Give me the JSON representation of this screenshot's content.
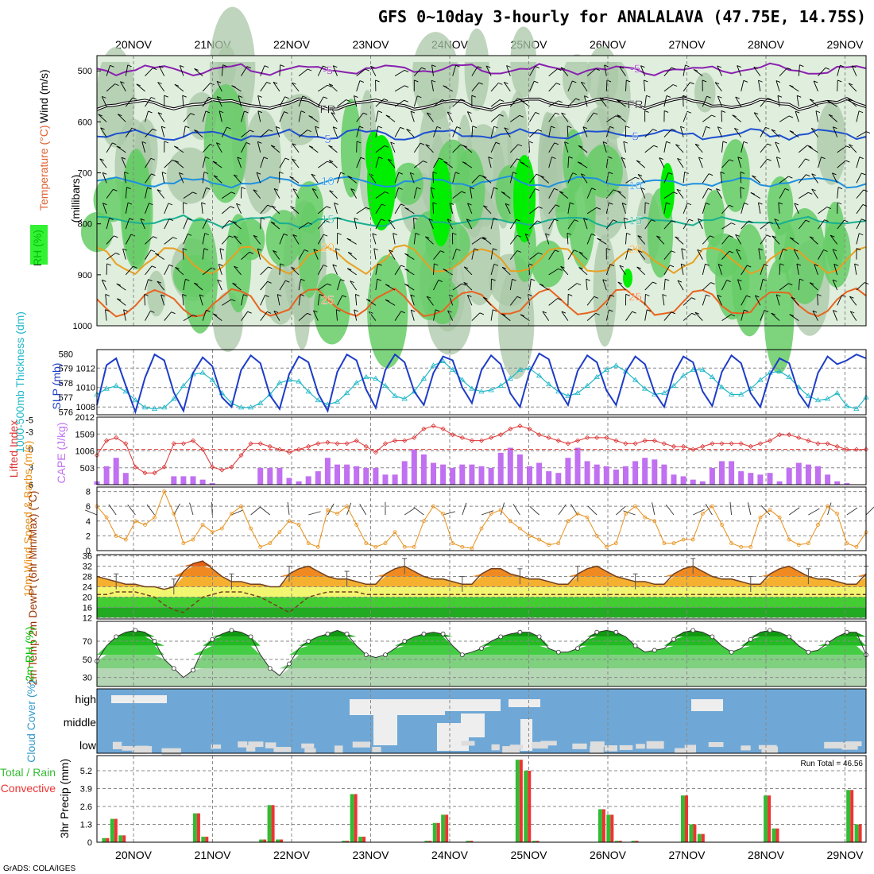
{
  "title": "GFS 0~10day 3-hourly for ANALALAVA (47.75E, 14.75S)",
  "footer": "GrADS: COLA/IGES",
  "colors": {
    "rh_fill_light": "#dfeedd",
    "rh_fill_mid": "#a9c7a7",
    "rh_fill_green": "#66cc66",
    "rh_fill_bright": "#00ee00",
    "slp": "#1e3cc8",
    "thickness": "#20b8c8",
    "lifted_index": "#dd3333",
    "cape": "#c070f0",
    "wind10m": "#e8901a",
    "temp": "#ee6600",
    "rh2m": "#00c000",
    "cloud": "#6fa8d6",
    "precip_total": "#33bb33",
    "precip_conv": "#ee3333"
  },
  "chart_data": [
    {
      "panel": "upper-air",
      "type": "heatmap",
      "title": "",
      "ylabel": "(millibars)",
      "side_labels": [
        "RH (%)",
        "Temperature (°C)",
        "Wind (m/s)"
      ],
      "dates": [
        "20NOV",
        "21NOV",
        "22NOV",
        "23NOV",
        "24NOV",
        "25NOV",
        "26NOV",
        "27NOV",
        "28NOV",
        "29NOV"
      ],
      "yticks": [
        500,
        600,
        700,
        800,
        900,
        1000
      ],
      "ylim": [
        470,
        1000
      ],
      "temperature_contours": [
        {
          "label": "-5",
          "level_mb": 497,
          "color": "#8a1fb0"
        },
        {
          "label": "FR",
          "level_mb": 565,
          "color": "#000000"
        },
        {
          "label": "5",
          "level_mb": 625,
          "color": "#1e50d0"
        },
        {
          "label": "10",
          "level_mb": 718,
          "color": "#1e90e0"
        },
        {
          "label": "15",
          "level_mb": 795,
          "color": "#18b090"
        },
        {
          "label": "20",
          "level_mb": 870,
          "color": "#e8a020"
        },
        {
          "label": "25",
          "level_mb": 955,
          "color": "#e86420"
        }
      ]
    },
    {
      "panel": "slp-thickness",
      "type": "line",
      "ylabel_left": "1000-500mb Thickness (dm)",
      "ylabel_right": "SLP (mb)",
      "yticks_left": [
        576,
        577,
        578,
        579,
        580
      ],
      "yticks_right": [
        1008,
        1010,
        1012
      ],
      "series": [
        {
          "name": "SLP (mb)",
          "values": [
            1008.2,
            1012.3,
            1013.0,
            1010.2,
            1007.5,
            1011.0,
            1013.4,
            1012.8,
            1009.5,
            1007.6,
            1011.5,
            1013.1,
            1012.2,
            1009.0,
            1008.0,
            1011.8,
            1013.3,
            1012.5,
            1009.2,
            1007.8,
            1011.4,
            1013.2,
            1012.6,
            1009.4,
            1007.6,
            1011.6,
            1013.4,
            1012.8,
            1009.8,
            1007.9,
            1011.8,
            1013.4,
            1012.6,
            1009.6,
            1008.2,
            1011.5,
            1013.2,
            1012.8,
            1010.0,
            1008.4,
            1011.8,
            1013.3,
            1012.4,
            1009.4,
            1008.0,
            1011.6,
            1013.5,
            1012.9,
            1009.8,
            1008.2,
            1011.7,
            1013.3,
            1012.6,
            1009.7,
            1008.2,
            1011.6,
            1013.2,
            1012.4,
            1009.5,
            1008.0,
            1011.4,
            1013.2,
            1012.6,
            1009.6,
            1008.1,
            1011.6,
            1013.3,
            1012.5,
            1009.4,
            1008.0,
            1011.3,
            1013.0,
            1012.5,
            1009.4,
            1008.0,
            1011.5,
            1013.2,
            1012.4,
            1012.8,
            1013.4,
            1013.0
          ]
        },
        {
          "name": "1000-500mb Thickness (dm)",
          "values": [
            577.2,
            577.6,
            577.8,
            577.4,
            576.8,
            576.3,
            576.2,
            576.3,
            576.9,
            577.8,
            578.6,
            578.7,
            578.2,
            577.3,
            576.6,
            576.3,
            576.3,
            576.6,
            577.2,
            578.0,
            578.2,
            578.1,
            577.4,
            576.8,
            576.5,
            576.7,
            577.3,
            578.0,
            578.4,
            578.3,
            577.8,
            577.1,
            576.9,
            577.4,
            578.3,
            579.2,
            579.5,
            578.9,
            578.2,
            577.6,
            577.4,
            577.5,
            577.8,
            578.3,
            578.9,
            579.0,
            578.5,
            577.9,
            577.4,
            577.1,
            577.3,
            577.8,
            578.4,
            578.9,
            579.2,
            578.8,
            578.2,
            577.6,
            577.2,
            577.3,
            577.8,
            578.5,
            578.9,
            578.9,
            578.4,
            577.7,
            577.2,
            577.2,
            577.6,
            578.2,
            578.7,
            578.8,
            578.4,
            577.7,
            577.1,
            576.8,
            576.9,
            577.3,
            576.4,
            576.2,
            577.0
          ]
        }
      ]
    },
    {
      "panel": "li-cape",
      "type": "bar",
      "ylabel_left": "Lifted Index",
      "ylabel_right": "CAPE (J/kg)",
      "yticks_left": [
        -5,
        -3,
        0,
        3,
        6
      ],
      "yticks_right": [
        503,
        1006,
        1509,
        2012
      ],
      "series": [
        {
          "name": "CAPE (J/kg)",
          "values": [
            100,
            550,
            800,
            350,
            20,
            0,
            0,
            0,
            250,
            250,
            250,
            150,
            50,
            0,
            0,
            0,
            0,
            500,
            500,
            500,
            200,
            100,
            250,
            400,
            800,
            600,
            600,
            550,
            500,
            500,
            300,
            300,
            700,
            1050,
            900,
            650,
            600,
            500,
            600,
            600,
            550,
            500,
            950,
            1100,
            900,
            550,
            650,
            400,
            350,
            800,
            1100,
            700,
            600,
            550,
            450,
            550,
            700,
            800,
            750,
            600,
            300,
            250,
            150,
            100,
            500,
            700,
            700,
            400,
            350,
            300,
            350,
            100,
            500,
            650,
            600,
            550,
            300,
            100,
            50,
            0,
            0
          ]
        },
        {
          "name": "Lifted Index",
          "values": [
            1.0,
            -1.5,
            -2.0,
            -1.0,
            3.0,
            4.0,
            4.0,
            3.0,
            -1.0,
            -1.0,
            -1.5,
            0.0,
            3.0,
            3.5,
            3.0,
            1.0,
            -1.0,
            -1.0,
            -0.5,
            0.0,
            0.5,
            0.0,
            -0.5,
            -1.0,
            -1.2,
            -1.0,
            -1.0,
            -1.5,
            -0.5,
            0.5,
            -1.0,
            -1.5,
            -1.5,
            -2.0,
            -3.5,
            -4.0,
            -3.5,
            -2.5,
            -2.0,
            -1.5,
            -1.5,
            -2.0,
            -2.5,
            -3.5,
            -4.0,
            -3.5,
            -2.5,
            -2.0,
            -1.5,
            -1.0,
            -1.5,
            -2.0,
            -2.0,
            -2.0,
            -1.5,
            -1.0,
            -1.0,
            -1.5,
            -1.5,
            -1.0,
            -0.5,
            -0.5,
            0.0,
            -0.5,
            -1.0,
            -1.0,
            -1.0,
            -1.0,
            -0.5,
            -1.0,
            -1.5,
            -2.5,
            -2.5,
            -2.0,
            -1.5,
            -1.0,
            -1.0,
            -0.5,
            0.0,
            0.0,
            0.0
          ]
        }
      ]
    },
    {
      "panel": "wind10m",
      "type": "line",
      "ylabel": "10m Wind Speed & Barbs (m/s)",
      "yticks": [
        0,
        2,
        4,
        6,
        8
      ],
      "series": [
        {
          "name": "10m Wind Speed (m/s)",
          "values": [
            6.0,
            4.5,
            2.0,
            1.5,
            4.0,
            3.5,
            4.5,
            8.0,
            5.0,
            1.0,
            1.5,
            3.5,
            2.5,
            3.0,
            5.0,
            6.0,
            3.0,
            0.5,
            1.0,
            2.5,
            4.0,
            3.5,
            1.0,
            0.5,
            5.5,
            5.0,
            6.0,
            3.5,
            1.0,
            0.5,
            1.0,
            2.5,
            0.5,
            0.5,
            4.0,
            6.0,
            5.0,
            1.0,
            0.5,
            0.3,
            3.0,
            5.0,
            5.5,
            4.0,
            3.0,
            2.0,
            1.5,
            0.8,
            1.0,
            4.0,
            5.0,
            4.5,
            2.0,
            0.5,
            1.0,
            5.0,
            6.0,
            4.5,
            4.0,
            1.0,
            1.0,
            1.5,
            1.5,
            5.0,
            6.0,
            3.5,
            1.0,
            0.5,
            0.5,
            4.5,
            5.5,
            4.5,
            1.5,
            0.8,
            1.0,
            3.5,
            6.0,
            5.0,
            1.0,
            0.5,
            2.5
          ]
        }
      ]
    },
    {
      "panel": "temp2m",
      "type": "area",
      "ylabel": "2m Temp 2m DewPt (6hr Min/Max) (°C)",
      "yticks": [
        12,
        16,
        20,
        24,
        28,
        32,
        36
      ],
      "series": [
        {
          "name": "2m Temp",
          "values": [
            28,
            27,
            26,
            25,
            25,
            24,
            24,
            23,
            24,
            30,
            33,
            34,
            31,
            28,
            26,
            26,
            25,
            25,
            24,
            24,
            29,
            31,
            32,
            30,
            28,
            27,
            27,
            26,
            25,
            25,
            29,
            31,
            32,
            30,
            28,
            27,
            27,
            26,
            25,
            25,
            29,
            31,
            31,
            29,
            28,
            27,
            27,
            26,
            25,
            25,
            29,
            31,
            32,
            30,
            28,
            27,
            26,
            26,
            25,
            25,
            29,
            31,
            32,
            30,
            28,
            27,
            27,
            26,
            25,
            25,
            29,
            31,
            32,
            30,
            28,
            27,
            27,
            26,
            25,
            25,
            29
          ]
        },
        {
          "name": "2m DewPt",
          "values": [
            21,
            21,
            22,
            22,
            22,
            21,
            20,
            17,
            15,
            14,
            17,
            20,
            21,
            22,
            22,
            22,
            21,
            20,
            18,
            16,
            14,
            17,
            20,
            21,
            22,
            22,
            22,
            22,
            21,
            21,
            21,
            21,
            21,
            21,
            21,
            21,
            21,
            21,
            21,
            21,
            21,
            21,
            21,
            21,
            21,
            21,
            21,
            21,
            21,
            21,
            21,
            21,
            21,
            21,
            21,
            21,
            21,
            21,
            21,
            21,
            21,
            21,
            21,
            21,
            21,
            21,
            21,
            21,
            21,
            21,
            21,
            21,
            21,
            21,
            21,
            21,
            21,
            21,
            21,
            21,
            21
          ]
        }
      ]
    },
    {
      "panel": "rh2m",
      "type": "area",
      "ylabel": "2m RH (%)",
      "yticks": [
        30,
        50,
        70
      ],
      "series": [
        {
          "name": "2m RH (%)",
          "values": [
            48,
            65,
            75,
            80,
            82,
            80,
            70,
            50,
            40,
            30,
            38,
            60,
            72,
            78,
            82,
            80,
            75,
            55,
            40,
            32,
            45,
            62,
            70,
            75,
            78,
            82,
            78,
            65,
            55,
            52,
            55,
            62,
            70,
            75,
            78,
            80,
            78,
            65,
            55,
            58,
            62,
            70,
            75,
            78,
            80,
            80,
            75,
            62,
            58,
            58,
            62,
            72,
            80,
            82,
            80,
            75,
            65,
            58,
            60,
            62,
            72,
            80,
            82,
            80,
            75,
            65,
            58,
            62,
            72,
            80,
            82,
            80,
            75,
            65,
            58,
            60,
            68,
            75,
            80,
            80,
            55
          ]
        }
      ]
    },
    {
      "panel": "cloud",
      "type": "heatmap",
      "ylabel": "Cloud Cover (%)",
      "rows": [
        "high",
        "middle",
        "low"
      ]
    },
    {
      "panel": "precip",
      "type": "bar",
      "ylabel": "3hr Precip (mm)",
      "side_labels": [
        "Total / Rain",
        "Convective"
      ],
      "yticks": [
        0,
        1.3,
        2.6,
        3.9,
        5.2
      ],
      "annotation": "Run Total = 46.56",
      "series": [
        {
          "name": "Total",
          "values": [
            0,
            0.3,
            1.7,
            0.5,
            0,
            0,
            0,
            0,
            0,
            0,
            0,
            0,
            2.1,
            0.4,
            0,
            0,
            0,
            0,
            0,
            0,
            0.2,
            2.7,
            0.2,
            0,
            0,
            0,
            0,
            0,
            0,
            0,
            0.1,
            3.5,
            0.4,
            0,
            0,
            0,
            0,
            0,
            0,
            0,
            0.1,
            1.4,
            2.0,
            0,
            0,
            0.1,
            0,
            0,
            0,
            0,
            0,
            6.0,
            5.2,
            0.1,
            0,
            0,
            0,
            0,
            0,
            0,
            0,
            2.4,
            2.0,
            0.1,
            0,
            0.1,
            0,
            0,
            0,
            0,
            0,
            3.4,
            1.3,
            0.6,
            0,
            0,
            0,
            0,
            0,
            0,
            0,
            3.4,
            1.0,
            0,
            0,
            0,
            0,
            0,
            0,
            0,
            0,
            3.8,
            1.3,
            0
          ]
        },
        {
          "name": "Convective",
          "values": [
            0,
            0.3,
            1.7,
            0.5,
            0,
            0,
            0,
            0,
            0,
            0,
            0,
            0,
            2.1,
            0.4,
            0,
            0,
            0,
            0,
            0,
            0,
            0.2,
            2.7,
            0.2,
            0,
            0,
            0,
            0,
            0,
            0,
            0,
            0.1,
            3.5,
            0.4,
            0,
            0,
            0,
            0,
            0,
            0,
            0,
            0.1,
            1.4,
            2.0,
            0,
            0,
            0.1,
            0,
            0,
            0,
            0,
            0,
            6.0,
            5.2,
            0.1,
            0,
            0,
            0,
            0,
            0,
            0,
            0,
            2.4,
            2.0,
            0.1,
            0,
            0.1,
            0,
            0,
            0,
            0,
            0,
            3.4,
            1.3,
            0.6,
            0,
            0,
            0,
            0,
            0,
            0,
            0,
            3.4,
            1.0,
            0,
            0,
            0,
            0,
            0,
            0,
            0,
            0,
            3.8,
            1.3,
            0
          ]
        }
      ]
    }
  ]
}
